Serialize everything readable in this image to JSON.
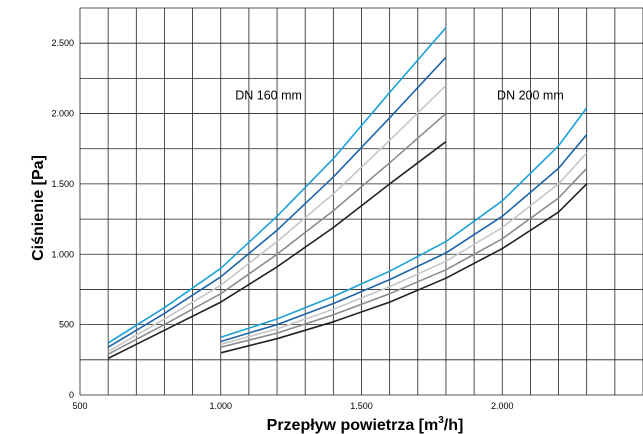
{
  "chart_data": {
    "type": "line",
    "xlabel_parts": [
      "Przepływ powietrza [m",
      "3",
      "/h]"
    ],
    "ylabel": "Ciśnienie [Pa]",
    "xlim": [
      500,
      2500
    ],
    "ylim": [
      0,
      2750
    ],
    "x_ticks": [
      500,
      1000,
      1500,
      2000
    ],
    "x_tick_labels": [
      "500",
      "1.000",
      "1.500",
      "2.000"
    ],
    "y_ticks": [
      0,
      500,
      1000,
      1500,
      2000,
      2500
    ],
    "y_tick_labels": [
      "0",
      "500",
      "1.000",
      "1.500",
      "2.000",
      "2.500"
    ],
    "grid": true,
    "annotations": [
      {
        "text": "DN 160 mm",
        "x": 1170,
        "y": 2100
      },
      {
        "text": "DN 200 mm",
        "x": 2100,
        "y": 2100
      }
    ],
    "series": [
      {
        "group": "DN 160 mm",
        "color": "#1ba1d8",
        "x": [
          600,
          800,
          1000,
          1200,
          1400,
          1600,
          1800
        ],
        "y": [
          370,
          620,
          900,
          1270,
          1680,
          2150,
          2610
        ]
      },
      {
        "group": "DN 160 mm",
        "color": "#1e64a8",
        "x": [
          600,
          800,
          1000,
          1200,
          1400,
          1600,
          1800
        ],
        "y": [
          340,
          580,
          840,
          1170,
          1550,
          1970,
          2400
        ]
      },
      {
        "group": "DN 160 mm",
        "color": "#c6c6c6",
        "x": [
          600,
          800,
          1000,
          1200,
          1400,
          1600,
          1800
        ],
        "y": [
          310,
          540,
          780,
          1090,
          1430,
          1810,
          2200
        ]
      },
      {
        "group": "DN 160 mm",
        "color": "#8c8c8c",
        "x": [
          600,
          800,
          1000,
          1200,
          1400,
          1600,
          1800
        ],
        "y": [
          290,
          500,
          720,
          1000,
          1310,
          1650,
          2000
        ]
      },
      {
        "group": "DN 160 mm",
        "color": "#222222",
        "x": [
          600,
          800,
          1000,
          1200,
          1400,
          1600,
          1800
        ],
        "y": [
          260,
          460,
          660,
          910,
          1190,
          1500,
          1800
        ]
      },
      {
        "group": "DN 200 mm",
        "color": "#1ba1d8",
        "x": [
          1000,
          1200,
          1400,
          1600,
          1800,
          2000,
          2200,
          2300
        ],
        "y": [
          410,
          540,
          700,
          880,
          1090,
          1380,
          1770,
          2040
        ]
      },
      {
        "group": "DN 200 mm",
        "color": "#1e64a8",
        "x": [
          1000,
          1200,
          1400,
          1600,
          1800,
          2000,
          2200,
          2300
        ],
        "y": [
          380,
          500,
          650,
          820,
          1010,
          1270,
          1610,
          1850
        ]
      },
      {
        "group": "DN 200 mm",
        "color": "#c6c6c6",
        "x": [
          1000,
          1200,
          1400,
          1600,
          1800,
          2000,
          2200,
          2300
        ],
        "y": [
          360,
          470,
          610,
          770,
          950,
          1190,
          1500,
          1720
        ]
      },
      {
        "group": "DN 200 mm",
        "color": "#8c8c8c",
        "x": [
          1000,
          1200,
          1400,
          1600,
          1800,
          2000,
          2200,
          2300
        ],
        "y": [
          340,
          440,
          570,
          720,
          890,
          1110,
          1400,
          1610
        ]
      },
      {
        "group": "DN 200 mm",
        "color": "#222222",
        "x": [
          1000,
          1200,
          1400,
          1600,
          1800,
          2000,
          2200,
          2300
        ],
        "y": [
          300,
          400,
          520,
          660,
          830,
          1040,
          1300,
          1500
        ]
      }
    ]
  }
}
